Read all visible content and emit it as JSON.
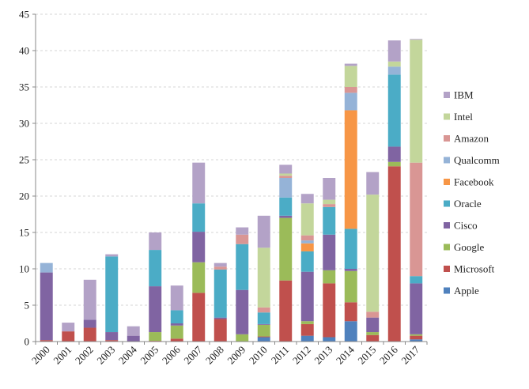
{
  "chart_data": {
    "type": "bar",
    "stacked": true,
    "categories": [
      "2000",
      "2001",
      "2002",
      "2003",
      "2004",
      "2005",
      "2006",
      "2007",
      "2008",
      "2009",
      "2010",
      "2011",
      "2012",
      "2013",
      "2014",
      "2015",
      "2016",
      "2017"
    ],
    "ylim": [
      0,
      45
    ],
    "yticks": [
      0,
      5,
      10,
      15,
      20,
      25,
      30,
      35,
      40,
      45
    ],
    "grid": "horizontal dashed",
    "legend_position": "right",
    "series": [
      {
        "name": "Apple",
        "color": "#4f81bd",
        "values": [
          0,
          0,
          0,
          0,
          0,
          0,
          0,
          0,
          0,
          0,
          0.6,
          0,
          0.8,
          0.6,
          2.8,
          0,
          0,
          0.3
        ]
      },
      {
        "name": "Microsoft",
        "color": "#c0504d",
        "values": [
          0.2,
          1.4,
          1.9,
          0.2,
          0,
          0.1,
          0.4,
          6.7,
          3.1,
          0,
          0.1,
          8.4,
          1.6,
          7.4,
          2.6,
          0.9,
          24.1,
          0.5
        ]
      },
      {
        "name": "Google",
        "color": "#9bbb59",
        "values": [
          0,
          0,
          0,
          0,
          0,
          1.2,
          1.8,
          4.2,
          0,
          1.0,
          1.6,
          8.6,
          0.4,
          1.8,
          4.3,
          0.4,
          0.6,
          0.2
        ]
      },
      {
        "name": "Cisco",
        "color": "#8064a2",
        "values": [
          9.3,
          0,
          1.1,
          1.1,
          0.8,
          6.3,
          0.3,
          4.2,
          0.2,
          6.1,
          0.1,
          0.3,
          6.8,
          4.9,
          0.3,
          2.0,
          2.1,
          7.0
        ]
      },
      {
        "name": "Oracle",
        "color": "#4bacc6",
        "values": [
          0,
          0,
          0,
          10.4,
          0,
          5.0,
          1.8,
          3.9,
          6.6,
          6.3,
          1.6,
          2.5,
          2.8,
          3.8,
          5.5,
          0,
          9.9,
          1.0
        ]
      },
      {
        "name": "Facebook",
        "color": "#f79646",
        "values": [
          0,
          0,
          0,
          0,
          0,
          0,
          0,
          0,
          0,
          0,
          0,
          0,
          1.1,
          0,
          16.3,
          0,
          0,
          0
        ]
      },
      {
        "name": "Qualcomm",
        "color": "#95b3d7",
        "values": [
          1.3,
          0,
          0,
          0,
          0,
          0,
          0,
          0,
          0,
          0,
          0,
          2.7,
          0.4,
          0,
          2.4,
          0,
          1.1,
          0
        ]
      },
      {
        "name": "Amazon",
        "color": "#d99694",
        "values": [
          0,
          0,
          0,
          0,
          0,
          0,
          0,
          0,
          0.4,
          1.3,
          0.7,
          0.3,
          0.7,
          0.4,
          0.8,
          0.8,
          0,
          15.6
        ]
      },
      {
        "name": "Intel",
        "color": "#c3d69b",
        "values": [
          0,
          0,
          0,
          0,
          0,
          0,
          0,
          0,
          0,
          0,
          8.2,
          0.3,
          4.4,
          0.6,
          2.9,
          16.1,
          0.7,
          16.9
        ]
      },
      {
        "name": "IBM",
        "color": "#b3a2c7",
        "values": [
          0,
          1.2,
          5.5,
          0.3,
          1.3,
          2.4,
          3.4,
          5.6,
          0.5,
          1.0,
          4.4,
          1.2,
          1.3,
          3.0,
          0.3,
          3.1,
          2.9,
          0.1
        ]
      }
    ]
  }
}
